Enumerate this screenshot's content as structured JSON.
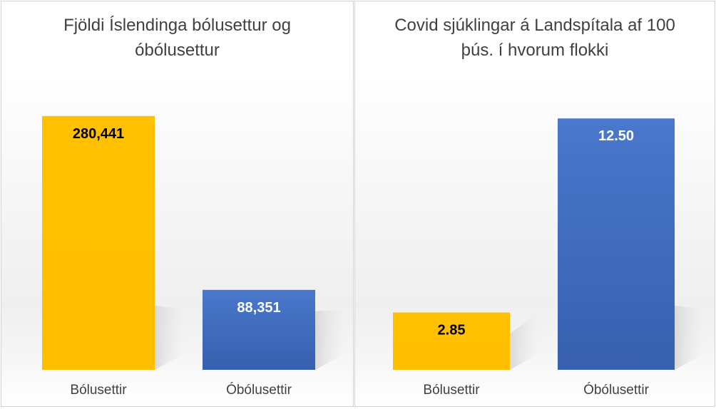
{
  "colors": {
    "vaccinated": "#FFC000",
    "unvaccinated": "#4472C4"
  },
  "chart_data": [
    {
      "type": "bar",
      "title": "Fjöldi Íslendinga bólusettur og óbólusettur",
      "categories": [
        "Bólusettir",
        "Óbólusettir"
      ],
      "values": [
        280441,
        88351
      ],
      "value_labels": [
        "280,441",
        "88,351"
      ],
      "xlabel": "",
      "ylabel": "",
      "ylim": [
        0,
        300000
      ],
      "grid": false
    },
    {
      "type": "bar",
      "title": "Covid sjúklingar á Landspítala af 100 þús. í hvorum flokki",
      "categories": [
        "Bólusettir",
        "Óbólusettir"
      ],
      "values": [
        2.85,
        12.5
      ],
      "value_labels": [
        "2.85",
        "12.50"
      ],
      "xlabel": "",
      "ylabel": "",
      "ylim": [
        0,
        13.5
      ],
      "grid": false
    }
  ]
}
